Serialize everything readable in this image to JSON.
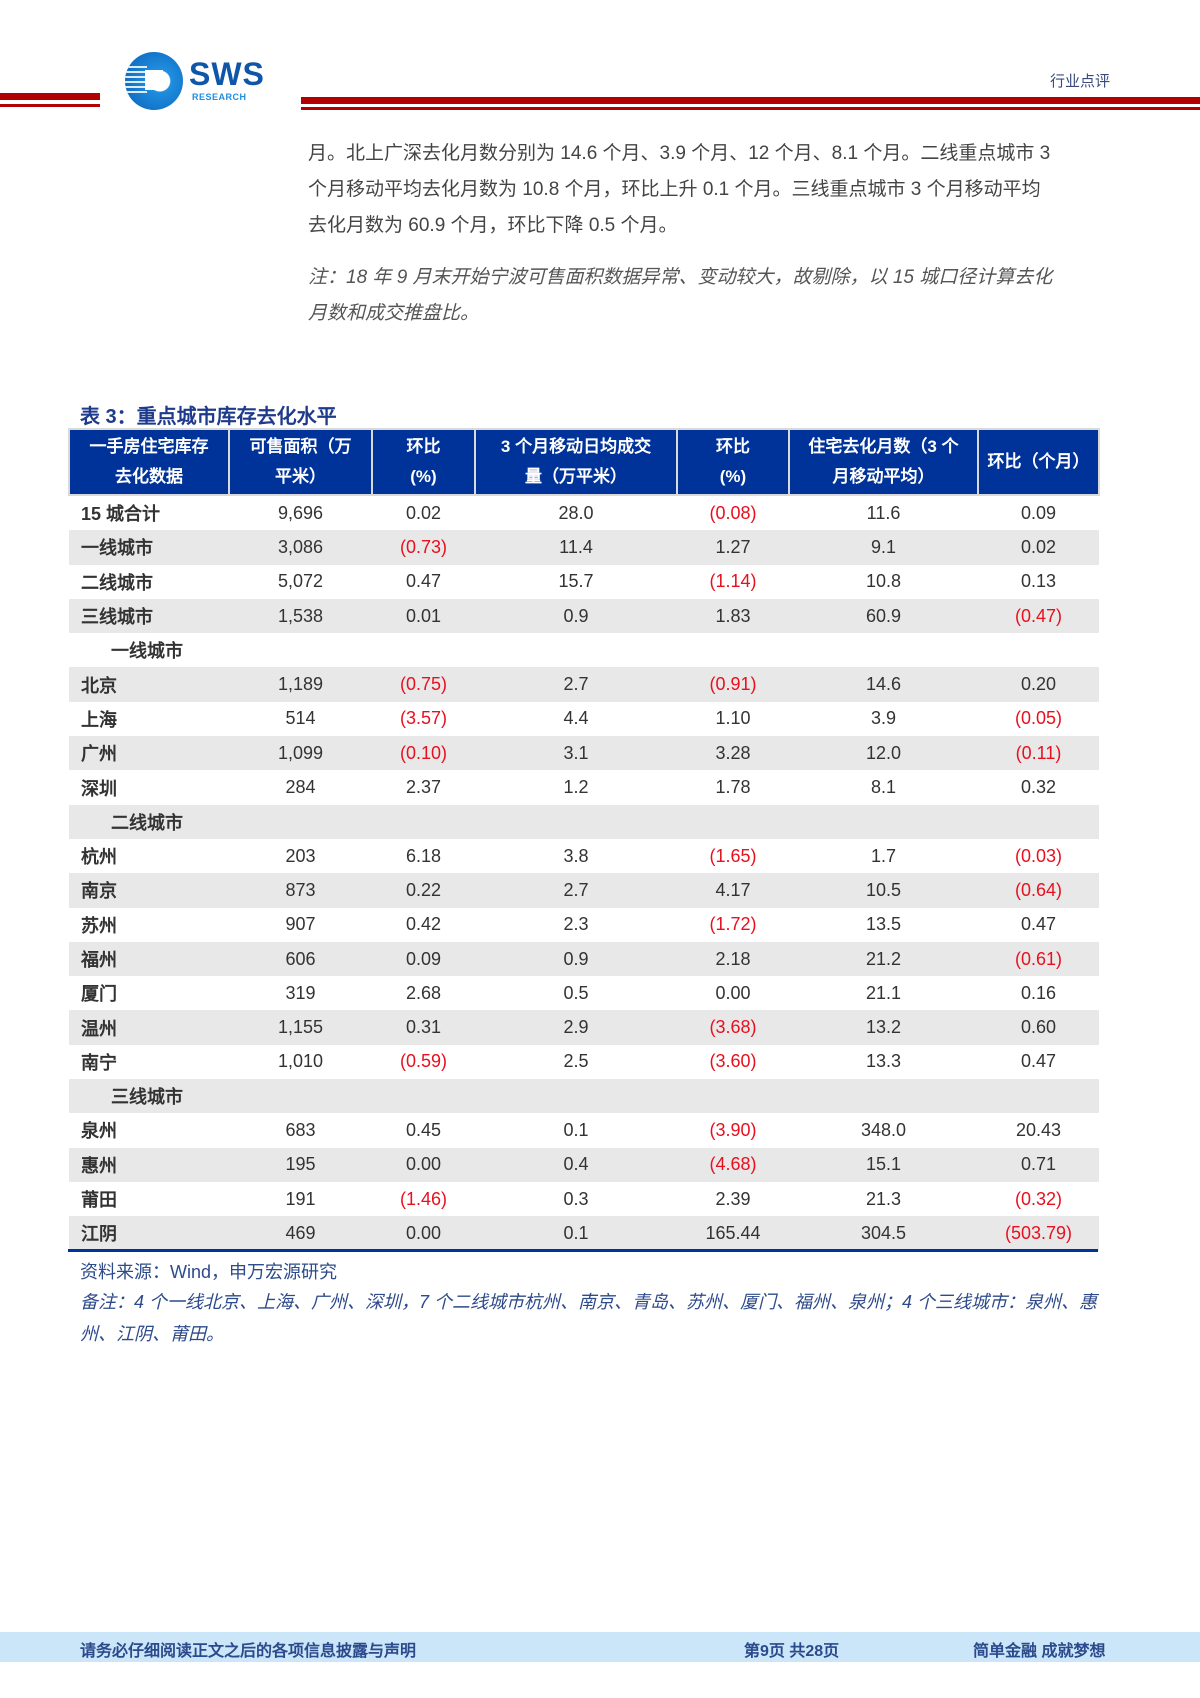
{
  "header": {
    "logo_text": "SWS",
    "logo_subtext": "RESEARCH",
    "doc_type": "行业点评",
    "accent_color": "#b30000"
  },
  "body": {
    "paragraph_lines": [
      "月。北上广深去化月数分别为 14.6 个月、3.9 个月、12 个月、8.1 个月。二线重点城市 3",
      "个月移动平均去化月数为 10.8 个月，环比上升 0.1 个月。三线重点城市 3 个月移动平均",
      "去化月数为 60.9 个月，环比下降 0.5 个月。"
    ],
    "note_lines": [
      "注：18 年 9 月末开始宁波可售面积数据异常、变动较大，故剔除，以 15 城口径计算去化",
      "月数和成交推盘比。"
    ]
  },
  "table": {
    "title": "表 3：重点城市库存去化水平",
    "header_color": "#003399",
    "negative_color": "#e8101e",
    "columns": [
      [
        "一手房住宅库存",
        "去化数据"
      ],
      [
        "可售面积（万",
        "平米）"
      ],
      [
        "环比",
        "(%)"
      ],
      [
        "3 个月移动日均成交",
        "量（万平米）"
      ],
      [
        "环比",
        "(%)"
      ],
      [
        "住宅去化月数（3 个",
        "月移动平均）"
      ],
      [
        "环比（个月）"
      ]
    ],
    "rows": [
      {
        "type": "data",
        "name": "15 城合计",
        "values": [
          "9,696",
          "0.02",
          "28.0",
          "(0.08)",
          "11.6",
          "0.09"
        ]
      },
      {
        "type": "data",
        "name": "一线城市",
        "values": [
          "3,086",
          "(0.73)",
          "11.4",
          "1.27",
          "9.1",
          "0.02"
        ]
      },
      {
        "type": "data",
        "name": "二线城市",
        "values": [
          "5,072",
          "0.47",
          "15.7",
          "(1.14)",
          "10.8",
          "0.13"
        ]
      },
      {
        "type": "data",
        "name": "三线城市",
        "values": [
          "1,538",
          "0.01",
          "0.9",
          "1.83",
          "60.9",
          "(0.47)"
        ]
      },
      {
        "type": "section",
        "name": "一线城市"
      },
      {
        "type": "data",
        "name": "北京",
        "values": [
          "1,189",
          "(0.75)",
          "2.7",
          "(0.91)",
          "14.6",
          "0.20"
        ]
      },
      {
        "type": "data",
        "name": "上海",
        "values": [
          "514",
          "(3.57)",
          "4.4",
          "1.10",
          "3.9",
          "(0.05)"
        ]
      },
      {
        "type": "data",
        "name": "广州",
        "values": [
          "1,099",
          "(0.10)",
          "3.1",
          "3.28",
          "12.0",
          "(0.11)"
        ]
      },
      {
        "type": "data",
        "name": "深圳",
        "values": [
          "284",
          "2.37",
          "1.2",
          "1.78",
          "8.1",
          "0.32"
        ]
      },
      {
        "type": "section",
        "name": "二线城市"
      },
      {
        "type": "data",
        "name": "杭州",
        "values": [
          "203",
          "6.18",
          "3.8",
          "(1.65)",
          "1.7",
          "(0.03)"
        ]
      },
      {
        "type": "data",
        "name": "南京",
        "values": [
          "873",
          "0.22",
          "2.7",
          "4.17",
          "10.5",
          "(0.64)"
        ]
      },
      {
        "type": "data",
        "name": "苏州",
        "values": [
          "907",
          "0.42",
          "2.3",
          "(1.72)",
          "13.5",
          "0.47"
        ]
      },
      {
        "type": "data",
        "name": "福州",
        "values": [
          "606",
          "0.09",
          "0.9",
          "2.18",
          "21.2",
          "(0.61)"
        ]
      },
      {
        "type": "data",
        "name": "厦门",
        "values": [
          "319",
          "2.68",
          "0.5",
          "0.00",
          "21.1",
          "0.16"
        ]
      },
      {
        "type": "data",
        "name": "温州",
        "values": [
          "1,155",
          "0.31",
          "2.9",
          "(3.68)",
          "13.2",
          "0.60"
        ]
      },
      {
        "type": "data",
        "name": "南宁",
        "values": [
          "1,010",
          "(0.59)",
          "2.5",
          "(3.60)",
          "13.3",
          "0.47"
        ]
      },
      {
        "type": "section",
        "name": "三线城市"
      },
      {
        "type": "data",
        "name": "泉州",
        "values": [
          "683",
          "0.45",
          "0.1",
          "(3.90)",
          "348.0",
          "20.43"
        ]
      },
      {
        "type": "data",
        "name": "惠州",
        "values": [
          "195",
          "0.00",
          "0.4",
          "(4.68)",
          "15.1",
          "0.71"
        ]
      },
      {
        "type": "data",
        "name": "莆田",
        "values": [
          "191",
          "(1.46)",
          "0.3",
          "2.39",
          "21.3",
          "(0.32)"
        ]
      },
      {
        "type": "data",
        "name": "江阴",
        "values": [
          "469",
          "0.00",
          "0.1",
          "165.44",
          "304.5",
          "(503.79)"
        ]
      }
    ],
    "source": "资料来源：Wind，申万宏源研究",
    "remark": "备注：4 个一线北京、上海、广州、深圳，7 个二线城市杭州、南京、青岛、苏州、厦门、福州、泉州；4 个三线城市：泉州、惠州、江阴、莆田。"
  },
  "footer": {
    "disclaimer": "请务必仔细阅读正文之后的各项信息披露与声明",
    "page_info": "第9页 共28页",
    "slogan": "简单金融 成就梦想",
    "background_color": "#cbe6f8"
  }
}
